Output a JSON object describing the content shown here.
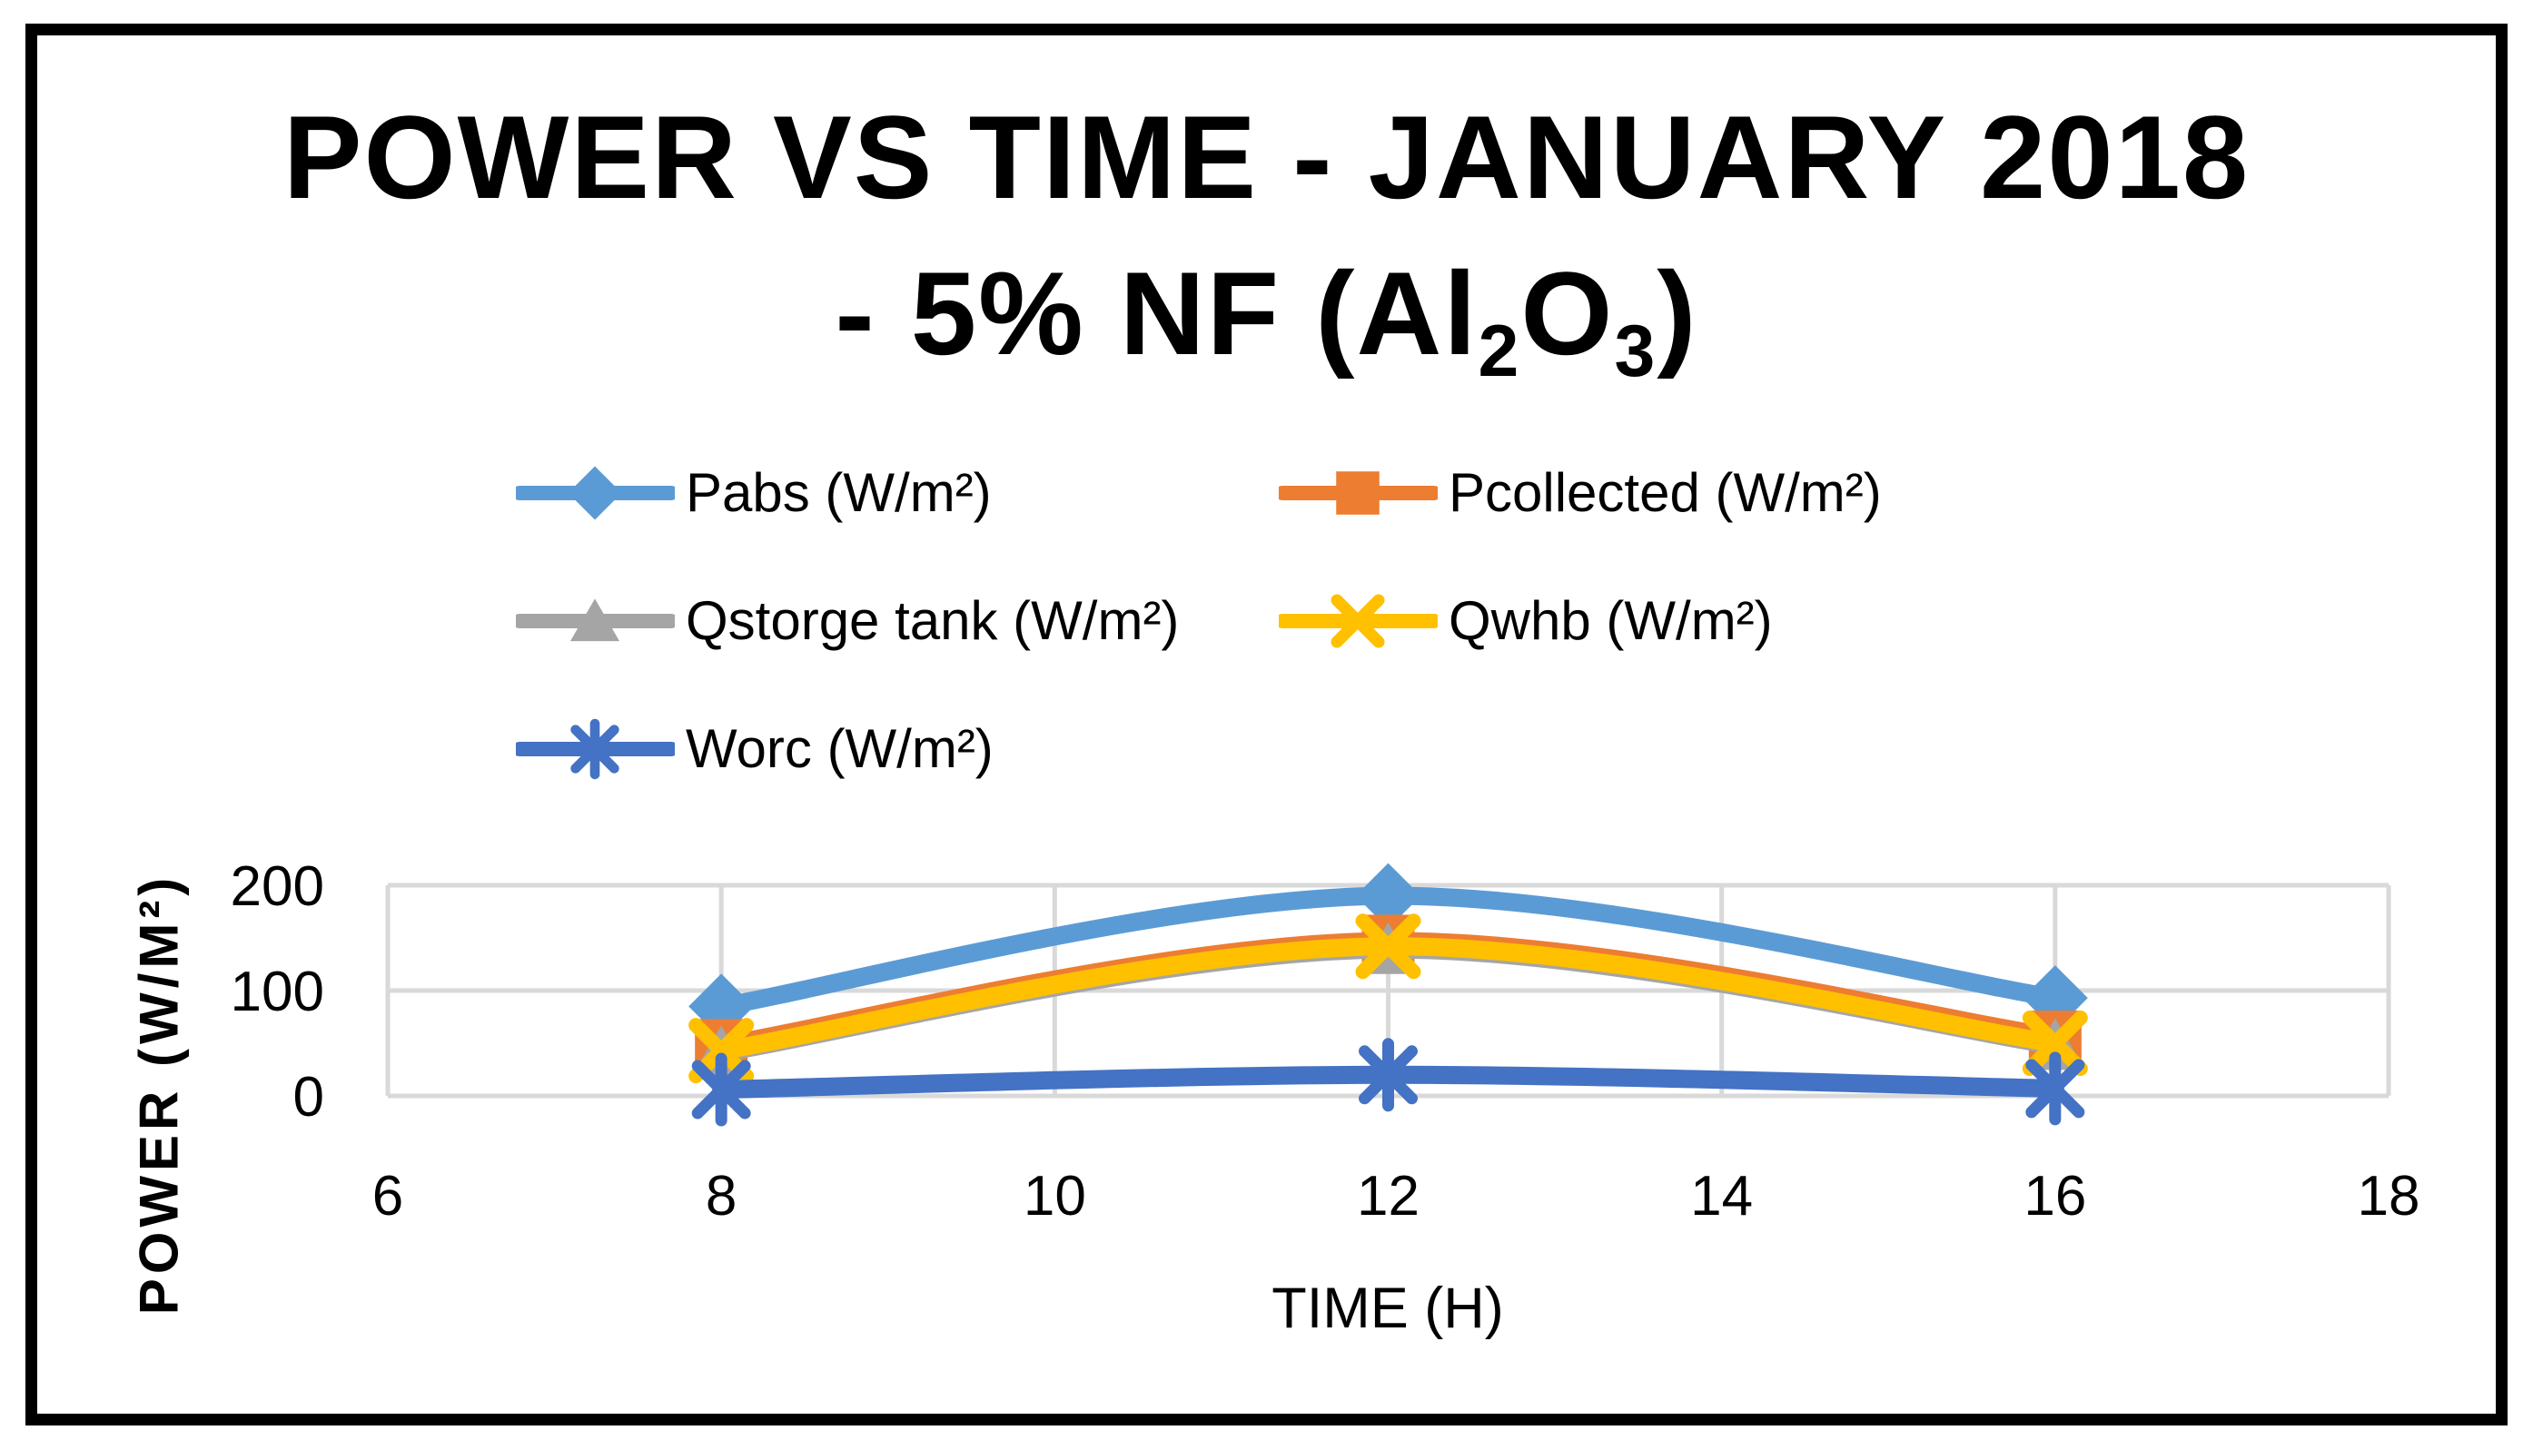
{
  "page": {
    "background": "#FFFFFF",
    "border_color": "#000000"
  },
  "title": {
    "line1": "POWER VS TIME - JANUARY 2018",
    "line2_pre": "- 5% NF (Al",
    "line2_sub1": "2",
    "line2_mid": "O",
    "line2_sub2": "3",
    "line2_post": ")"
  },
  "chart_data": {
    "type": "line",
    "title": "POWER VS TIME - JANUARY 2018 - 5% NF (Al2O3)",
    "x": [
      8,
      12,
      16
    ],
    "xlabel": "TIME (H)",
    "ylabel": "POWER (W/M²)",
    "xlim": [
      6,
      18
    ],
    "ylim": [
      0,
      200
    ],
    "xticks": [
      6,
      8,
      10,
      12,
      14,
      16,
      18
    ],
    "yticks": [
      0,
      100,
      200
    ],
    "grid": true,
    "smooth": true,
    "legend_position": "top-left",
    "gridline_color": "#D9D9D9",
    "series": [
      {
        "name": "Pabs (W/m²)",
        "color": "#5B9BD5",
        "marker": "diamond",
        "values": [
          85,
          190,
          93
        ]
      },
      {
        "name": "Pcollected (W/m²)",
        "color": "#ED7D31",
        "marker": "square",
        "values": [
          48,
          147,
          56
        ]
      },
      {
        "name": "Qstorge tank (W/m²)",
        "color": "#A5A5A5",
        "marker": "triangle",
        "values": [
          41,
          139,
          48
        ]
      },
      {
        "name": "Qwhb (W/m²)",
        "color": "#FFC000",
        "marker": "x",
        "values": [
          43,
          142,
          50
        ]
      },
      {
        "name": "Worc (W/m²)",
        "color": "#4472C4",
        "marker": "star",
        "values": [
          6,
          20,
          7
        ]
      }
    ]
  }
}
